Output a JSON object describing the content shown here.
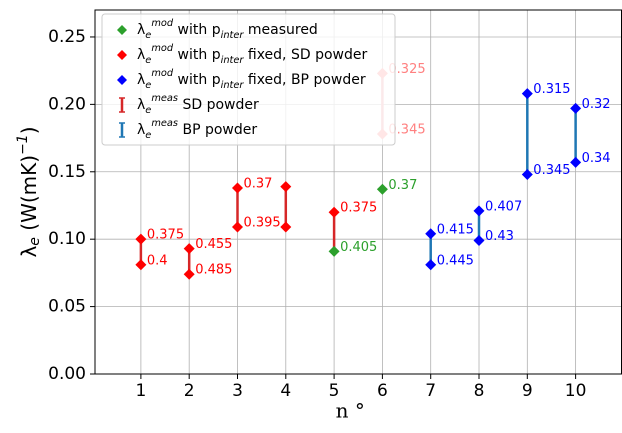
{
  "chart_data": {
    "type": "scatter",
    "xlabel": "n °",
    "ylabel": "λ_{e} (W(mK)^{−1})",
    "xlim": [
      0.05,
      10.95
    ],
    "ylim": [
      0,
      0.27
    ],
    "xticks": [
      1,
      2,
      3,
      4,
      5,
      6,
      7,
      8,
      9,
      10
    ],
    "yticks": [
      {
        "value": 0,
        "label": "0.00"
      },
      {
        "value": 0.05,
        "label": "0.05"
      },
      {
        "value": 0.1,
        "label": "0.10"
      },
      {
        "value": 0.15,
        "label": "0.15"
      },
      {
        "value": 0.2,
        "label": "0.20"
      },
      {
        "value": 0.25,
        "label": "0.25"
      }
    ],
    "grid": true,
    "legend": "upper left",
    "series": [
      {
        "name": "λ_{e}^{mod} with p_{inter} measured",
        "kind": "points",
        "color": "#2ca02c",
        "x": [
          5,
          6
        ],
        "values": [
          0.091,
          0.137
        ],
        "annotations": [
          {
            "value": 0.405,
            "label": "0.405"
          },
          {
            "value": 0.37,
            "label": "0.37"
          }
        ]
      },
      {
        "name": "λ_{e}^{mod} with p_{inter} fixed, SD powder",
        "kind": "points",
        "color": "#ff0000",
        "x": [
          1,
          1,
          2,
          2,
          3,
          3,
          4,
          4,
          5,
          6,
          6
        ],
        "values": [
          0.1,
          0.081,
          0.093,
          0.074,
          0.138,
          0.109,
          0.139,
          0.109,
          0.12,
          0.223,
          0.178
        ],
        "point_colors": [
          "#ff0000",
          "#ff0000",
          "#ff0000",
          "#ff0000",
          "#ff0000",
          "#ff0000",
          "#ff0000",
          "#ff0000",
          "#ff0000",
          "#ff8080",
          "#ff8080"
        ],
        "annotations": [
          {
            "value": 0.375,
            "label": "0.375"
          },
          {
            "value": 0.4,
            "label": "0.4"
          },
          {
            "value": 0.455,
            "label": "0.455"
          },
          {
            "value": 0.485,
            "label": "0.485"
          },
          {
            "value": 0.37,
            "label": "0.37"
          },
          {
            "value": 0.395,
            "label": "0.395"
          },
          null,
          null,
          {
            "value": 0.375,
            "label": "0.375"
          },
          {
            "value": 0.325,
            "label": "0.325"
          },
          {
            "value": 0.345,
            "label": "0.345"
          }
        ]
      },
      {
        "name": "λ_{e}^{mod} with p_{inter} fixed, BP powder",
        "kind": "points",
        "color": "#0000ff",
        "x": [
          7,
          7,
          8,
          8,
          9,
          9,
          10,
          10
        ],
        "values": [
          0.104,
          0.081,
          0.121,
          0.099,
          0.208,
          0.148,
          0.197,
          0.157
        ],
        "annotations": [
          {
            "value": 0.415,
            "label": "0.415"
          },
          {
            "value": 0.445,
            "label": "0.445"
          },
          {
            "value": 0.407,
            "label": "0.407"
          },
          {
            "value": 0.43,
            "label": "0.43"
          },
          {
            "value": 0.315,
            "label": "0.315"
          },
          {
            "value": 0.345,
            "label": "0.345"
          },
          {
            "value": 0.32,
            "label": "0.32"
          },
          {
            "value": 0.34,
            "label": "0.34"
          }
        ]
      },
      {
        "name": "λ_{e}^{meas} SD powder",
        "kind": "range",
        "color": "#d62728",
        "x": [
          1,
          2,
          3,
          4,
          5,
          6
        ],
        "low": [
          0.081,
          0.074,
          0.109,
          0.109,
          0.091,
          0.178
        ],
        "high": [
          0.1,
          0.093,
          0.138,
          0.139,
          0.12,
          0.223
        ],
        "point_colors": [
          "#d62728",
          "#d62728",
          "#d62728",
          "#d62728",
          "#d62728",
          "#eb9394"
        ]
      },
      {
        "name": "λ_{e}^{meas} BP powder",
        "kind": "range",
        "color": "#1f77b4",
        "x": [
          7,
          8,
          9,
          10
        ],
        "low": [
          0.081,
          0.099,
          0.148,
          0.157
        ],
        "high": [
          0.104,
          0.121,
          0.208,
          0.197
        ]
      }
    ]
  }
}
